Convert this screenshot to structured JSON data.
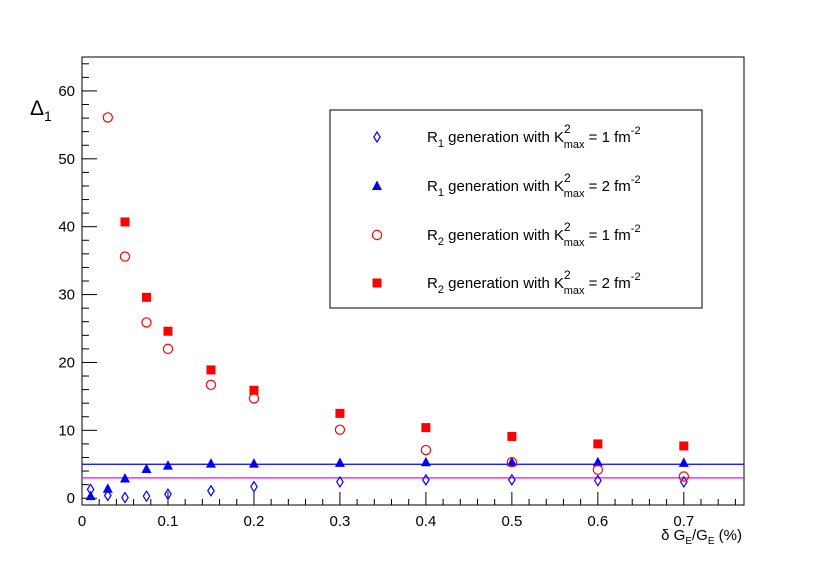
{
  "chart_data": {
    "type": "scatter",
    "title": "",
    "xlabel": {
      "main": "δ G",
      "sub1": "E",
      "mid": "/G",
      "sub2": "E",
      "tail": " (%)"
    },
    "ylabel": {
      "main": "Δ",
      "sub": "1"
    },
    "xlim": [
      0,
      0.77
    ],
    "ylim": [
      -1,
      65
    ],
    "xticks": [
      0,
      0.1,
      0.2,
      0.3,
      0.4,
      0.5,
      0.6,
      0.7
    ],
    "xtick_labels": [
      "0",
      "0.1",
      "0.2",
      "0.3",
      "0.4",
      "0.5",
      "0.6",
      "0.7"
    ],
    "yticks": [
      0,
      10,
      20,
      30,
      40,
      50,
      60
    ],
    "ytick_labels": [
      "0",
      "10",
      "20",
      "30",
      "40",
      "50",
      "60"
    ],
    "grid": false,
    "legend_position": "top-right",
    "series": [
      {
        "name": "R1 generation with K2max = 1 fm-2",
        "label": {
          "pre": "R",
          "sub1": "1",
          "mid": " generation with K",
          "sup": "2",
          "sub2": "max",
          "post": " = 1 fm",
          "exp": "-2"
        },
        "marker": "open-diamond",
        "color": "#0000ff",
        "x": [
          0.01,
          0.03,
          0.05,
          0.075,
          0.1,
          0.15,
          0.2,
          0.3,
          0.4,
          0.5,
          0.6,
          0.7
        ],
        "y": [
          1.3,
          0.4,
          0.1,
          0.3,
          0.6,
          1.1,
          1.7,
          2.4,
          2.7,
          2.7,
          2.6,
          2.4
        ]
      },
      {
        "name": "R1 generation with K2max = 2 fm-2",
        "label": {
          "pre": "R",
          "sub1": "1",
          "mid": " generation with K",
          "sup": "2",
          "sub2": "max",
          "post": " = 2 fm",
          "exp": "-2"
        },
        "marker": "filled-triangle",
        "color": "#0000ff",
        "x": [
          0.01,
          0.03,
          0.05,
          0.075,
          0.1,
          0.15,
          0.2,
          0.3,
          0.4,
          0.5,
          0.6,
          0.7
        ],
        "y": [
          0.3,
          1.4,
          2.9,
          4.3,
          4.8,
          5.1,
          5.1,
          5.2,
          5.3,
          5.3,
          5.3,
          5.2
        ]
      },
      {
        "name": "R2 generation with K2max = 1 fm-2",
        "label": {
          "pre": "R",
          "sub1": "2",
          "mid": " generation with K",
          "sup": "2",
          "sub2": "max",
          "post": " = 1 fm",
          "exp": "-2"
        },
        "marker": "open-circle",
        "color": "#ff0000",
        "x": [
          0.03,
          0.05,
          0.075,
          0.1,
          0.15,
          0.2,
          0.3,
          0.4,
          0.5,
          0.6,
          0.7
        ],
        "y": [
          56.1,
          35.6,
          25.9,
          22.0,
          16.7,
          14.7,
          10.1,
          7.1,
          5.3,
          4.2,
          3.2
        ]
      },
      {
        "name": "R2 generation with K2max = 2 fm-2",
        "label": {
          "pre": "R",
          "sub1": "2",
          "mid": " generation with K",
          "sup": "2",
          "sub2": "max",
          "post": " = 2 fm",
          "exp": "-2"
        },
        "marker": "filled-square",
        "color": "#ff0000",
        "x": [
          0.05,
          0.075,
          0.1,
          0.15,
          0.2,
          0.3,
          0.4,
          0.5,
          0.6,
          0.7
        ],
        "y": [
          40.7,
          29.6,
          24.6,
          18.9,
          15.9,
          12.5,
          10.4,
          9.1,
          8.0,
          7.7
        ]
      }
    ],
    "reference_lines": [
      {
        "name": "blue-line",
        "y": 5.0,
        "color": "#0000ff"
      },
      {
        "name": "magenta-line",
        "y": 3.0,
        "color": "#ff00ff"
      }
    ]
  }
}
